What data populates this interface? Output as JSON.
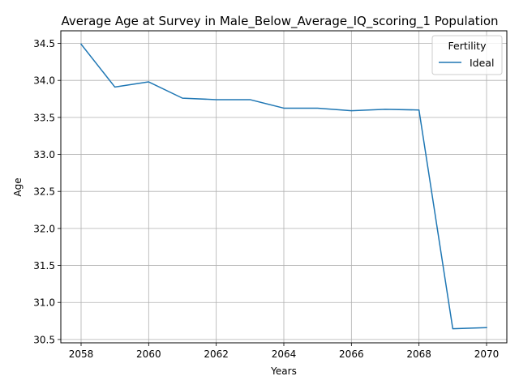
{
  "chart_data": {
    "type": "line",
    "title": "Average Age at Survey in Male_Below_Average_IQ_scoring_1 Population",
    "xlabel": "Years",
    "ylabel": "Age",
    "xlim": [
      2057.4,
      2070.6
    ],
    "ylim": [
      30.455,
      34.67
    ],
    "x_ticks": [
      2058,
      2060,
      2062,
      2064,
      2066,
      2068,
      2070
    ],
    "y_ticks": [
      30.5,
      31.0,
      31.5,
      32.0,
      32.5,
      33.0,
      33.5,
      34.0,
      34.5
    ],
    "grid": true,
    "legend": {
      "title": "Fertility",
      "placement": "top-right"
    },
    "series": [
      {
        "name": "Ideal",
        "color": "#1f77b4",
        "x": [
          2058,
          2059,
          2060,
          2061,
          2062,
          2063,
          2064,
          2065,
          2066,
          2067,
          2068,
          2069,
          2070
        ],
        "y": [
          34.49,
          33.91,
          33.98,
          33.76,
          33.74,
          33.74,
          33.625,
          33.625,
          33.59,
          33.61,
          33.6,
          30.645,
          30.66
        ]
      }
    ]
  }
}
